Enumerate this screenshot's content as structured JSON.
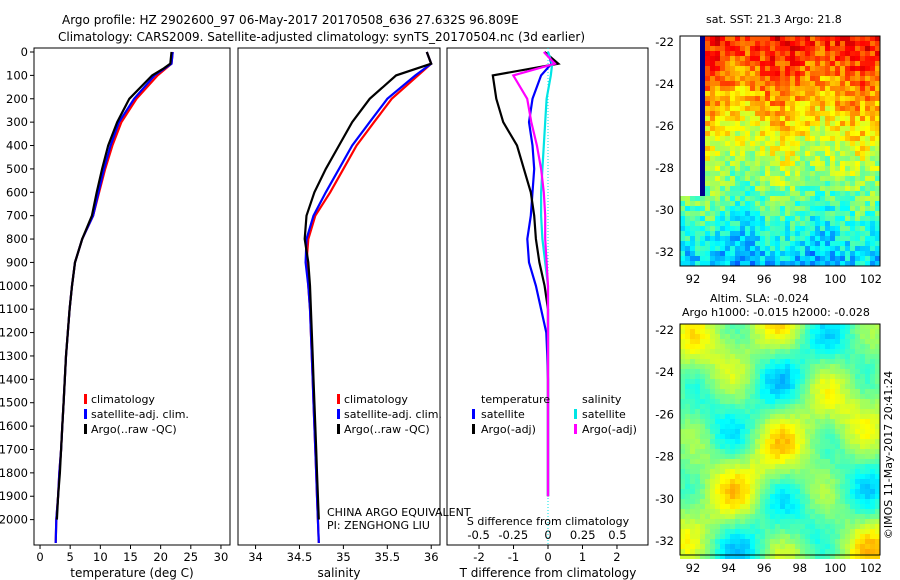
{
  "header": {
    "title_line1": "Argo profile: HZ 2902600_97 06-May-2017 20170508_636 27.632S 96.809E",
    "title_line2": "Climatology: CARS2009. Satellite-adjusted climatology: synTS_20170504.nc (3d earlier)"
  },
  "colors": {
    "climatology": "#ff0000",
    "satellite": "#0000ff",
    "argo": "#000000",
    "salinity_satellite": "#00e5e5",
    "salinity_argo": "#ff00ff"
  },
  "depth_ticks": [
    0,
    100,
    200,
    300,
    400,
    500,
    600,
    700,
    800,
    900,
    1000,
    1100,
    1200,
    1300,
    1400,
    1500,
    1600,
    1700,
    1800,
    1900,
    2000
  ],
  "legend_labels": [
    "climatology",
    "satellite-adj. clim.",
    "Argo(..raw -QC)"
  ],
  "temperature_panel": {
    "xlabel": "temperature (deg C)",
    "xticks": [
      "0",
      "5",
      "10",
      "15",
      "20",
      "25",
      "30"
    ]
  },
  "salinity_panel": {
    "xlabel": "salinity",
    "xticks": [
      "34",
      "34.5",
      "35",
      "35.5",
      "36"
    ],
    "annotation_line1": "CHINA ARGO EQUIVALENT",
    "annotation_line2": "PI: ZENGHONG LIU"
  },
  "difference_panel": {
    "xlabel_top": "S difference from climatology",
    "xticks_top": [
      "-0.5",
      "-0.25",
      "0",
      "0.25",
      "0.5"
    ],
    "xlabel_bottom": "T difference from climatology",
    "xticks_bottom": [
      "-2",
      "-1",
      "0",
      "1",
      "2"
    ],
    "legend_temperature_title": "temperature",
    "legend_salinity_title": "salinity",
    "legend_temperature_items": [
      "satellite",
      "Argo(-adj)"
    ],
    "legend_salinity_items": [
      "satellite",
      "Argo(-adj)"
    ]
  },
  "sst_map": {
    "title": "sat. SST: 21.3 Argo: 21.8",
    "yticks": [
      "-22",
      "-24",
      "-26",
      "-28",
      "-30",
      "-32"
    ],
    "xticks": [
      "92",
      "94",
      "96",
      "98",
      "100",
      "102"
    ]
  },
  "sla_map": {
    "title_line1": "Altim. SLA: -0.024",
    "title_line2": "Argo h1000: -0.015 h2000: -0.028",
    "yticks": [
      "-22",
      "-24",
      "-26",
      "-28",
      "-30",
      "-32"
    ],
    "xticks": [
      "92",
      "94",
      "96",
      "98",
      "100",
      "102"
    ]
  },
  "credit": "©IMOS 11-May-2017 20:41:24",
  "chart_data": [
    {
      "type": "line",
      "name": "temperature",
      "xlabel": "temperature (deg C)",
      "ylabel": "",
      "xlim": [
        -1,
        31.5
      ],
      "ylim": [
        2100,
        0
      ],
      "series": [
        {
          "name": "climatology",
          "color": "#ff0000",
          "x": [
            22.0,
            21.8,
            19.5,
            16.0,
            13.5,
            12.0,
            10.8,
            9.8,
            8.8,
            7.0,
            5.8,
            5.3,
            4.9,
            4.6,
            4.3,
            4.1,
            3.9,
            3.7,
            3.5,
            3.2,
            3.0,
            2.7,
            2.6
          ],
          "y": [
            0,
            50,
            100,
            200,
            300,
            400,
            500,
            600,
            700,
            800,
            900,
            1000,
            1100,
            1200,
            1300,
            1400,
            1500,
            1600,
            1700,
            1800,
            1900,
            2000,
            2100
          ]
        },
        {
          "name": "satellite-adj. clim.",
          "color": "#0000ff",
          "x": [
            22.0,
            21.8,
            19.0,
            15.6,
            13.1,
            11.7,
            10.6,
            9.7,
            8.8,
            7.0,
            5.8,
            5.3,
            4.9,
            4.6,
            4.3,
            4.1,
            3.9,
            3.7,
            3.5,
            3.2,
            3.0,
            2.7,
            2.6
          ],
          "y": [
            0,
            50,
            100,
            200,
            300,
            400,
            500,
            600,
            700,
            800,
            900,
            1000,
            1100,
            1200,
            1300,
            1400,
            1500,
            1600,
            1700,
            1800,
            1900,
            2000,
            2100
          ]
        },
        {
          "name": "Argo(..raw -QC)",
          "color": "#000000",
          "x": [
            21.8,
            21.6,
            20.5,
            18.6,
            14.8,
            12.8,
            11.3,
            10.3,
            9.4,
            8.6,
            7.0,
            5.8,
            5.3,
            4.9,
            4.6,
            4.3,
            4.1,
            3.9,
            3.7,
            3.5,
            3.3,
            3.0,
            2.8
          ],
          "y": [
            0,
            50,
            70,
            100,
            200,
            300,
            400,
            500,
            600,
            700,
            800,
            900,
            1000,
            1100,
            1200,
            1300,
            1400,
            1500,
            1600,
            1700,
            1800,
            1900,
            2000
          ]
        }
      ]
    },
    {
      "type": "line",
      "name": "salinity",
      "xlabel": "salinity",
      "ylabel": "",
      "xlim": [
        33.8,
        36.1
      ],
      "ylim": [
        2100,
        0
      ],
      "series": [
        {
          "name": "climatology",
          "color": "#ff0000",
          "x": [
            35.95,
            36.0,
            35.85,
            35.55,
            35.35,
            35.15,
            35.0,
            34.85,
            34.68,
            34.6,
            34.58,
            34.6,
            34.62,
            34.63,
            34.64,
            34.65,
            34.66,
            34.67,
            34.68,
            34.69,
            34.7,
            34.71,
            34.72
          ],
          "y": [
            0,
            50,
            100,
            200,
            300,
            400,
            500,
            600,
            700,
            800,
            900,
            1000,
            1100,
            1200,
            1300,
            1400,
            1500,
            1600,
            1700,
            1800,
            1900,
            2000,
            2100
          ]
        },
        {
          "name": "satellite-adj. clim.",
          "color": "#0000ff",
          "x": [
            35.95,
            36.0,
            35.82,
            35.5,
            35.3,
            35.1,
            34.95,
            34.8,
            34.66,
            34.58,
            34.57,
            34.6,
            34.62,
            34.63,
            34.64,
            34.65,
            34.66,
            34.67,
            34.68,
            34.69,
            34.7,
            34.71,
            34.72
          ],
          "y": [
            0,
            50,
            100,
            200,
            300,
            400,
            500,
            600,
            700,
            800,
            900,
            1000,
            1100,
            1200,
            1300,
            1400,
            1500,
            1600,
            1700,
            1800,
            1900,
            2000,
            2100
          ]
        },
        {
          "name": "Argo(..raw -QC)",
          "color": "#000000",
          "x": [
            35.95,
            36.0,
            35.6,
            35.3,
            35.1,
            34.95,
            34.8,
            34.67,
            34.58,
            34.56,
            34.6,
            34.62,
            34.63,
            34.64,
            34.65,
            34.66,
            34.67,
            34.68,
            34.69,
            34.7,
            34.71,
            34.72
          ],
          "y": [
            0,
            50,
            100,
            200,
            300,
            400,
            500,
            600,
            700,
            800,
            900,
            1000,
            1100,
            1200,
            1300,
            1400,
            1500,
            1600,
            1700,
            1800,
            1900,
            2000
          ]
        }
      ]
    },
    {
      "type": "line",
      "name": "difference",
      "xlabel": "T difference from climatology",
      "ylabel": "",
      "xlim": [
        -2.9,
        2.9
      ],
      "ylim": [
        2100,
        0
      ],
      "series": [
        {
          "name": "temperature satellite",
          "color": "#0000ff",
          "x": [
            0,
            0.1,
            -0.2,
            -0.45,
            -0.55,
            -0.45,
            -0.4,
            -0.45,
            -0.5,
            -0.6,
            -0.55,
            -0.35,
            -0.2,
            -0.05,
            -0.02,
            0,
            0,
            0,
            0,
            0,
            0
          ],
          "y": [
            0,
            50,
            100,
            200,
            300,
            400,
            500,
            600,
            700,
            800,
            900,
            1000,
            1100,
            1200,
            1300,
            1400,
            1500,
            1600,
            1700,
            1800,
            1900
          ]
        },
        {
          "name": "temperature Argo(-adj)",
          "color": "#000000",
          "x": [
            -0.1,
            0.3,
            -1.6,
            -1.5,
            -1.3,
            -0.9,
            -0.7,
            -0.5,
            -0.4,
            -0.35,
            -0.25,
            -0.1,
            0,
            0,
            0,
            0,
            0,
            0,
            0,
            0,
            0
          ],
          "y": [
            0,
            50,
            100,
            200,
            300,
            400,
            500,
            600,
            700,
            800,
            900,
            1000,
            1100,
            1200,
            1300,
            1400,
            1500,
            1600,
            1700,
            1800,
            1900
          ]
        },
        {
          "name": "salinity satellite",
          "color": "#00e5e5",
          "x": [
            0,
            0.03,
            0.02,
            -0.01,
            -0.02,
            -0.03,
            -0.04,
            -0.05,
            -0.05,
            -0.04,
            -0.02,
            0,
            0,
            0,
            0,
            0,
            0,
            0,
            0,
            0,
            0
          ],
          "y": [
            0,
            50,
            100,
            200,
            300,
            400,
            500,
            600,
            700,
            800,
            900,
            1000,
            1100,
            1200,
            1300,
            1400,
            1500,
            1600,
            1700,
            1800,
            1900
          ]
        },
        {
          "name": "salinity Argo(-adj)",
          "color": "#ff00ff",
          "x": [
            -0.03,
            0.05,
            -0.25,
            -0.15,
            -0.12,
            -0.08,
            -0.05,
            -0.03,
            -0.02,
            -0.02,
            -0.01,
            0,
            0,
            0,
            0,
            0,
            0,
            0,
            0,
            0,
            0
          ],
          "y": [
            0,
            50,
            100,
            200,
            300,
            400,
            500,
            600,
            700,
            800,
            900,
            1000,
            1100,
            1200,
            1300,
            1400,
            1500,
            1600,
            1700,
            1800,
            1900
          ]
        }
      ]
    }
  ]
}
